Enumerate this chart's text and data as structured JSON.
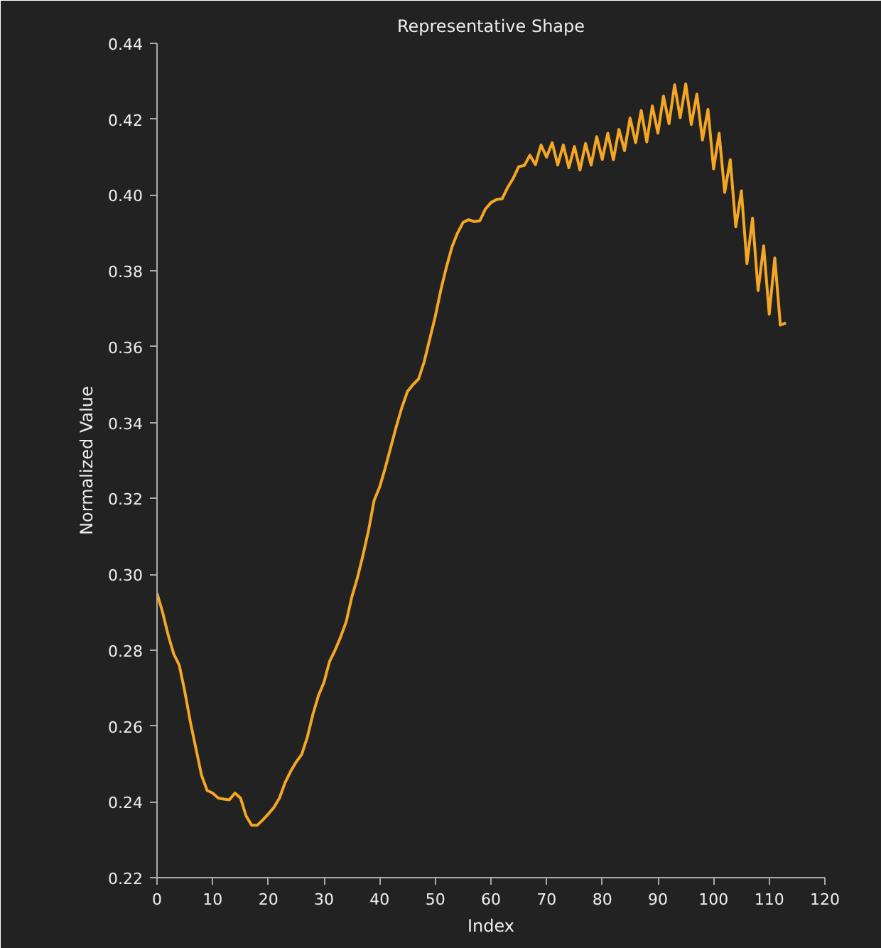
{
  "chart_data": {
    "type": "line",
    "title": "Representative Shape",
    "xlabel": "Index",
    "ylabel": "Normalized Value",
    "x": [
      0,
      1,
      2,
      3,
      4,
      5,
      6,
      7,
      8,
      9,
      10,
      11,
      12,
      13,
      14,
      15,
      16,
      17,
      18,
      19,
      20,
      21,
      22,
      23,
      24,
      25,
      26,
      27,
      28,
      29,
      30,
      31,
      32,
      33,
      34,
      35,
      36,
      37,
      38,
      39,
      40,
      41,
      42,
      43,
      44,
      45,
      46,
      47,
      48,
      49,
      50,
      51,
      52,
      53,
      54,
      55,
      56,
      57,
      58,
      59,
      60,
      61,
      62,
      63,
      64,
      65,
      66,
      67,
      68,
      69,
      70,
      71,
      72,
      73,
      74,
      75,
      76,
      77,
      78,
      79,
      80,
      81,
      82,
      83,
      84,
      85,
      86,
      87,
      88,
      89,
      90,
      91,
      92,
      93,
      94,
      95,
      96,
      97,
      98,
      99,
      100,
      101,
      102,
      103,
      104,
      105,
      106,
      107,
      108,
      109,
      110,
      111,
      112,
      113
    ],
    "series": [
      {
        "color": "#f5a623",
        "values": [
          0.295,
          0.29,
          0.284,
          0.279,
          0.276,
          0.269,
          0.261,
          0.254,
          0.247,
          0.243,
          0.2423,
          0.241,
          0.2407,
          0.2405,
          0.2423,
          0.241,
          0.2363,
          0.2338,
          0.2338,
          0.2352,
          0.2368,
          0.2385,
          0.241,
          0.245,
          0.248,
          0.2505,
          0.2525,
          0.257,
          0.263,
          0.268,
          0.2715,
          0.277,
          0.28,
          0.2835,
          0.2875,
          0.294,
          0.299,
          0.305,
          0.3115,
          0.3194,
          0.323,
          0.328,
          0.3335,
          0.339,
          0.344,
          0.3482,
          0.35,
          0.3515,
          0.356,
          0.362,
          0.368,
          0.375,
          0.381,
          0.3863,
          0.39,
          0.3928,
          0.3935,
          0.393,
          0.3932,
          0.3963,
          0.398,
          0.3988,
          0.399,
          0.402,
          0.4044,
          0.4075,
          0.4078,
          0.4105,
          0.408,
          0.4132,
          0.41,
          0.4138,
          0.4079,
          0.4132,
          0.4072,
          0.4128,
          0.4066,
          0.4136,
          0.4079,
          0.4154,
          0.4094,
          0.4163,
          0.4093,
          0.4173,
          0.4117,
          0.4203,
          0.4138,
          0.4223,
          0.414,
          0.4235,
          0.4163,
          0.4261,
          0.4188,
          0.4291,
          0.4204,
          0.4293,
          0.4186,
          0.4266,
          0.4145,
          0.4226,
          0.4069,
          0.4163,
          0.4007,
          0.4093,
          0.3916,
          0.4011,
          0.3819,
          0.3939,
          0.3748,
          0.3866,
          0.3686,
          0.3834,
          0.3657,
          0.3663
        ]
      }
    ],
    "xlim": [
      0,
      120
    ],
    "xticks": [
      0,
      10,
      20,
      30,
      40,
      50,
      60,
      70,
      80,
      90,
      100,
      110,
      120
    ],
    "ylim": [
      0.22,
      0.44
    ],
    "yticks": [
      {
        "value": 0.22,
        "label": "0.22"
      },
      {
        "value": 0.24,
        "label": "0.24"
      },
      {
        "value": 0.26,
        "label": "0.26"
      },
      {
        "value": 0.28,
        "label": "0.28"
      },
      {
        "value": 0.3,
        "label": "0.30"
      },
      {
        "value": 0.32,
        "label": "0.32"
      },
      {
        "value": 0.34,
        "label": "0.34"
      },
      {
        "value": 0.36,
        "label": "0.36"
      },
      {
        "value": 0.38,
        "label": "0.38"
      },
      {
        "value": 0.4,
        "label": "0.40"
      },
      {
        "value": 0.42,
        "label": "0.42"
      },
      {
        "value": 0.44,
        "label": "0.44"
      }
    ],
    "grid": false
  }
}
